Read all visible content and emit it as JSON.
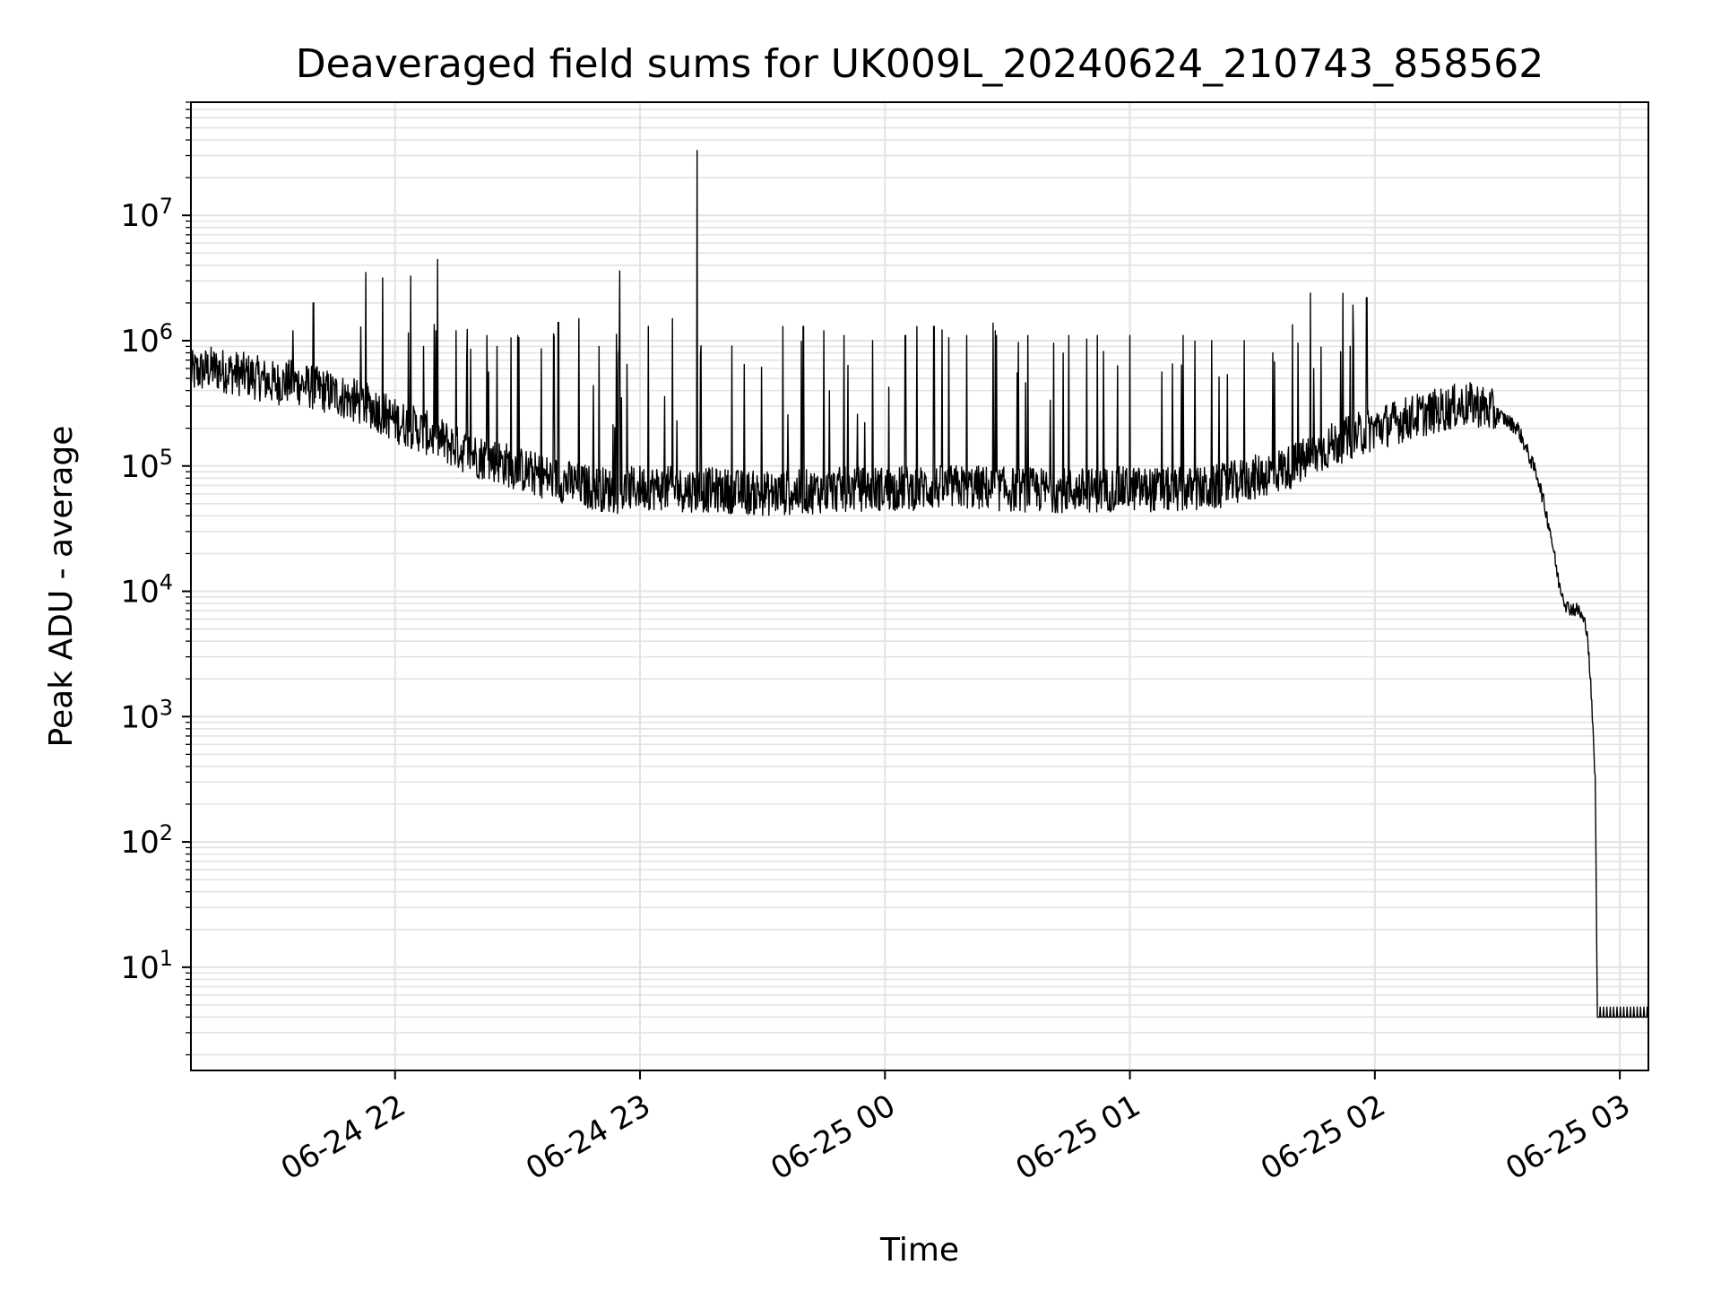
{
  "chart_data": {
    "type": "line",
    "title": "Deaveraged field sums for UK009L_20240624_210743_858562",
    "xlabel": "Time",
    "ylabel": "Peak ADU - average",
    "yscale": "log",
    "ylim": [
      1.5,
      80000000
    ],
    "xlim": [
      "2024-06-24 21:10",
      "2024-06-25 03:07"
    ],
    "grid": true,
    "x_ticks": [
      {
        "t": "2024-06-24 22:00",
        "label": "06-24 22"
      },
      {
        "t": "2024-06-24 23:00",
        "label": "06-24 23"
      },
      {
        "t": "2024-06-25 00:00",
        "label": "06-25 00"
      },
      {
        "t": "2024-06-25 01:00",
        "label": "06-25 01"
      },
      {
        "t": "2024-06-25 02:00",
        "label": "06-25 02"
      },
      {
        "t": "2024-06-25 03:00",
        "label": "06-25 03"
      }
    ],
    "y_ticks": [
      {
        "v": 10,
        "base": "10",
        "exp": "1"
      },
      {
        "v": 100,
        "base": "10",
        "exp": "2"
      },
      {
        "v": 1000,
        "base": "10",
        "exp": "3"
      },
      {
        "v": 10000,
        "base": "10",
        "exp": "4"
      },
      {
        "v": 100000,
        "base": "10",
        "exp": "5"
      },
      {
        "v": 1000000,
        "base": "10",
        "exp": "6"
      },
      {
        "v": 10000000,
        "base": "10",
        "exp": "7"
      }
    ],
    "series": [
      {
        "color": "#000000",
        "points": [
          [
            "2024-06-24 21:10",
            550000
          ],
          [
            "2024-06-24 21:15",
            600000
          ],
          [
            "2024-06-24 21:20",
            560000
          ],
          [
            "2024-06-24 21:25",
            520000
          ],
          [
            "2024-06-24 21:30",
            460000
          ],
          [
            "2024-06-24 21:35",
            470000
          ],
          [
            "2024-06-24 21:40",
            420000
          ],
          [
            "2024-06-24 21:45",
            380000
          ],
          [
            "2024-06-24 21:50",
            330000
          ],
          [
            "2024-06-24 21:55",
            290000
          ],
          [
            "2024-06-24 22:00",
            230000
          ],
          [
            "2024-06-24 22:05",
            200000
          ],
          [
            "2024-06-24 22:10",
            170000
          ],
          [
            "2024-06-24 22:15",
            140000
          ],
          [
            "2024-06-24 22:20",
            120000
          ],
          [
            "2024-06-24 22:25",
            110000
          ],
          [
            "2024-06-24 22:30",
            95000
          ],
          [
            "2024-06-24 22:35",
            85000
          ],
          [
            "2024-06-24 22:40",
            78000
          ],
          [
            "2024-06-24 22:45",
            70000
          ],
          [
            "2024-06-24 22:50",
            66000
          ],
          [
            "2024-06-24 22:55",
            62000
          ],
          [
            "2024-06-24 23:00",
            68000
          ],
          [
            "2024-06-24 23:10",
            65000
          ],
          [
            "2024-06-24 23:20",
            64000
          ],
          [
            "2024-06-24 23:30",
            60000
          ],
          [
            "2024-06-24 23:40",
            62000
          ],
          [
            "2024-06-24 23:50",
            65000
          ],
          [
            "2024-06-25 00:00",
            66000
          ],
          [
            "2024-06-25 00:10",
            67000
          ],
          [
            "2024-06-25 00:20",
            68000
          ],
          [
            "2024-06-25 00:30",
            65000
          ],
          [
            "2024-06-25 00:40",
            64000
          ],
          [
            "2024-06-25 00:50",
            64000
          ],
          [
            "2024-06-25 01:00",
            66000
          ],
          [
            "2024-06-25 01:10",
            64000
          ],
          [
            "2024-06-25 01:20",
            66000
          ],
          [
            "2024-06-25 01:30",
            80000
          ],
          [
            "2024-06-25 01:40",
            100000
          ],
          [
            "2024-06-25 01:50",
            150000
          ],
          [
            "2024-06-25 02:00",
            200000
          ],
          [
            "2024-06-25 02:10",
            250000
          ],
          [
            "2024-06-25 02:20",
            300000
          ],
          [
            "2024-06-25 02:25",
            310000
          ],
          [
            "2024-06-25 02:30",
            260000
          ],
          [
            "2024-06-25 02:35",
            200000
          ],
          [
            "2024-06-25 02:40",
            80000
          ],
          [
            "2024-06-25 02:43",
            30000
          ],
          [
            "2024-06-25 02:45",
            12000
          ],
          [
            "2024-06-25 02:47",
            7500
          ],
          [
            "2024-06-25 02:50",
            7000
          ],
          [
            "2024-06-25 02:52",
            5000
          ],
          [
            "2024-06-25 02:53",
            1500
          ],
          [
            "2024-06-25 02:54",
            300
          ],
          [
            "2024-06-25 02:54:30",
            4
          ],
          [
            "2024-06-25 03:07",
            4
          ]
        ]
      }
    ],
    "spikes": [
      [
        "2024-06-24 21:40",
        2000000
      ],
      [
        "2024-06-24 21:35",
        1200000
      ],
      [
        "2024-06-24 22:07",
        900000
      ],
      [
        "2024-06-24 22:10",
        1200000
      ],
      [
        "2024-06-24 22:15",
        1200000
      ],
      [
        "2024-06-24 22:25",
        900000
      ],
      [
        "2024-06-24 22:30",
        1100000
      ],
      [
        "2024-06-24 22:40",
        1400000
      ],
      [
        "2024-06-24 22:45",
        1500000
      ],
      [
        "2024-06-24 22:50",
        900000
      ],
      [
        "2024-06-24 22:55",
        3600000
      ],
      [
        "2024-06-24 23:02",
        1300000
      ],
      [
        "2024-06-24 23:08",
        1500000
      ],
      [
        "2024-06-24 23:14",
        33000000
      ],
      [
        "2024-06-24 23:35",
        1300000
      ],
      [
        "2024-06-24 23:40",
        1300000
      ],
      [
        "2024-06-24 23:45",
        1200000
      ],
      [
        "2024-06-24 23:50",
        1100000
      ],
      [
        "2024-06-24 23:57",
        1000000
      ],
      [
        "2024-06-25 00:05",
        1100000
      ],
      [
        "2024-06-25 00:12",
        1300000
      ],
      [
        "2024-06-25 00:20",
        1100000
      ],
      [
        "2024-06-25 00:27",
        1200000
      ],
      [
        "2024-06-25 00:35",
        1100000
      ],
      [
        "2024-06-25 00:45",
        1100000
      ],
      [
        "2024-06-25 00:52",
        1100000
      ],
      [
        "2024-06-25 01:00",
        1100000
      ],
      [
        "2024-06-25 01:13",
        1100000
      ],
      [
        "2024-06-25 01:20",
        1000000
      ],
      [
        "2024-06-25 01:28",
        1000000
      ],
      [
        "2024-06-25 01:35",
        800000
      ],
      [
        "2024-06-25 01:45",
        600000
      ],
      [
        "2024-06-25 01:58",
        2200000
      ]
    ]
  }
}
